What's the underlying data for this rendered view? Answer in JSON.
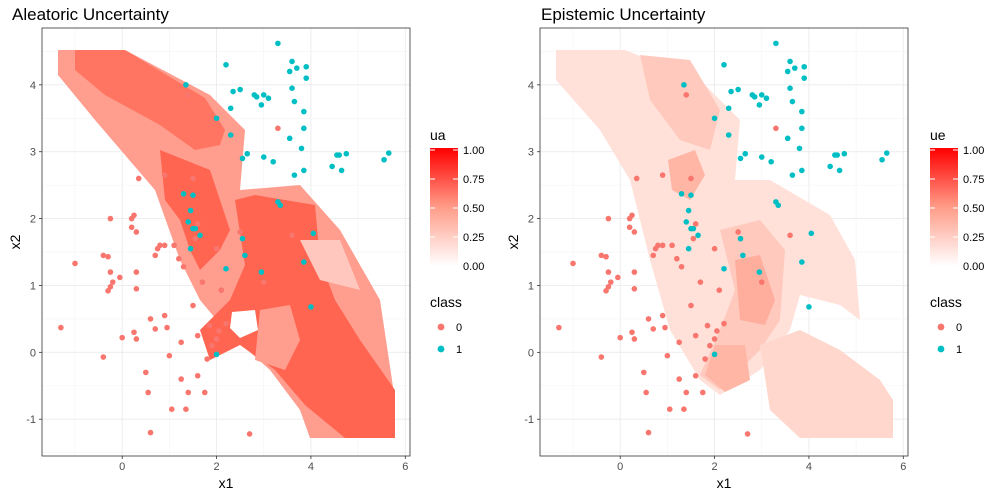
{
  "chart_data": [
    {
      "type": "scatter",
      "title": "Aleatoric Uncertainty",
      "xlabel": "x1",
      "ylabel": "x2",
      "xlim": [
        -1.7,
        6.1
      ],
      "ylim": [
        -1.55,
        4.85
      ],
      "x_ticks": [
        0,
        2,
        4,
        6
      ],
      "y_ticks": [
        -1,
        0,
        1,
        2,
        3,
        4
      ],
      "grid": true,
      "fill_scale": {
        "title": "ua",
        "low_color": "#ffffff",
        "high_color": "#ff0000",
        "breaks": [
          "0.00",
          "0.25",
          "0.50",
          "0.75",
          "1.00"
        ]
      },
      "fill_levels": {
        "high_core": 0.75,
        "mid_band": 0.55,
        "low_band": 0.25
      },
      "legend": {
        "title": "class",
        "labels": [
          "0",
          "1"
        ],
        "colors": [
          "#f8766d",
          "#00bfc4"
        ],
        "position": "right"
      }
    },
    {
      "type": "scatter",
      "title": "Epistemic Uncertainty",
      "xlabel": "x1",
      "ylabel": "x2",
      "xlim": [
        -1.7,
        6.1
      ],
      "ylim": [
        -1.55,
        4.85
      ],
      "x_ticks": [
        0,
        2,
        4,
        6
      ],
      "y_ticks": [
        -1,
        0,
        1,
        2,
        3,
        4
      ],
      "grid": true,
      "fill_scale": {
        "title": "ue",
        "low_color": "#ffffff",
        "high_color": "#ff0000",
        "breaks": [
          "0.00",
          "0.25",
          "0.50",
          "0.75",
          "1.00"
        ]
      },
      "fill_levels": {
        "high_core": 0.35,
        "mid_band": 0.22,
        "low_band": 0.12
      },
      "legend": {
        "title": "class",
        "labels": [
          "0",
          "1"
        ],
        "colors": [
          "#f8766d",
          "#00bfc4"
        ],
        "position": "right"
      }
    }
  ],
  "points": {
    "class0": [
      [
        -1.3,
        0.37
      ],
      [
        -1.0,
        1.33
      ],
      [
        -0.4,
        1.45
      ],
      [
        -0.4,
        -0.07
      ],
      [
        -0.25,
        1.2
      ],
      [
        -0.2,
        1.05
      ],
      [
        -0.05,
        1.12
      ],
      [
        0.0,
        0.22
      ],
      [
        -0.3,
        0.92
      ],
      [
        -0.25,
        0.98
      ],
      [
        -0.3,
        1.43
      ],
      [
        -0.25,
        2.0
      ],
      [
        0.2,
        2.0
      ],
      [
        0.25,
        2.05
      ],
      [
        0.2,
        1.87
      ],
      [
        0.3,
        1.2
      ],
      [
        0.3,
        0.95
      ],
      [
        0.3,
        1.8
      ],
      [
        0.35,
        2.6
      ],
      [
        0.25,
        0.3
      ],
      [
        0.3,
        0.2
      ],
      [
        0.5,
        -0.3
      ],
      [
        0.55,
        -0.6
      ],
      [
        0.6,
        0.5
      ],
      [
        0.6,
        -1.2
      ],
      [
        0.7,
        0.35
      ],
      [
        0.7,
        1.45
      ],
      [
        0.75,
        1.55
      ],
      [
        0.8,
        1.6
      ],
      [
        0.9,
        1.6
      ],
      [
        0.9,
        0.55
      ],
      [
        0.9,
        2.65
      ],
      [
        0.95,
        0.37
      ],
      [
        1.0,
        -0.05
      ],
      [
        1.05,
        -0.85
      ],
      [
        1.1,
        1.6
      ],
      [
        1.2,
        1.4
      ],
      [
        1.25,
        0.15
      ],
      [
        1.25,
        -0.4
      ],
      [
        1.35,
        -0.85
      ],
      [
        1.4,
        -0.6
      ],
      [
        1.5,
        2.6
      ],
      [
        1.5,
        0.7
      ],
      [
        1.6,
        0.25
      ],
      [
        1.6,
        -0.35
      ],
      [
        1.7,
        1.05
      ],
      [
        1.75,
        -0.6
      ],
      [
        1.8,
        -0.1
      ],
      [
        1.85,
        0.4
      ],
      [
        1.9,
        0.1
      ],
      [
        2.0,
        0.2
      ],
      [
        2.0,
        1.55
      ],
      [
        2.05,
        0.32
      ],
      [
        2.1,
        0.93
      ],
      [
        2.5,
        1.8
      ],
      [
        2.7,
        -1.22
      ],
      [
        3.0,
        1.05
      ],
      [
        3.3,
        3.35
      ],
      [
        3.6,
        1.75
      ],
      [
        1.4,
        3.85
      ],
      [
        2.2,
        0.43
      ],
      [
        1.55,
        1.7
      ],
      [
        1.6,
        1.92
      ],
      [
        1.3,
        1.28
      ]
    ],
    "class1": [
      [
        1.3,
        2.37
      ],
      [
        1.45,
        2.12
      ],
      [
        1.5,
        2.35
      ],
      [
        1.5,
        1.85
      ],
      [
        1.45,
        1.55
      ],
      [
        1.55,
        1.85
      ],
      [
        1.65,
        1.75
      ],
      [
        1.4,
        1.95
      ],
      [
        1.35,
        4.0
      ],
      [
        2.2,
        4.3
      ],
      [
        2.35,
        3.9
      ],
      [
        2.5,
        3.93
      ],
      [
        2.3,
        3.65
      ],
      [
        2.3,
        3.25
      ],
      [
        2.55,
        2.9
      ],
      [
        2.65,
        2.97
      ],
      [
        2.55,
        1.7
      ],
      [
        2.6,
        1.45
      ],
      [
        2.2,
        1.25
      ],
      [
        2.0,
        3.5
      ],
      [
        2.0,
        -0.03
      ],
      [
        2.8,
        3.85
      ],
      [
        2.85,
        3.82
      ],
      [
        2.95,
        3.7
      ],
      [
        3.0,
        2.92
      ],
      [
        3.1,
        3.8
      ],
      [
        3.3,
        4.62
      ],
      [
        3.2,
        2.85
      ],
      [
        3.3,
        2.25
      ],
      [
        3.35,
        2.2
      ],
      [
        3.55,
        4.2
      ],
      [
        3.55,
        3.2
      ],
      [
        3.6,
        3.95
      ],
      [
        3.6,
        4.35
      ],
      [
        3.65,
        3.75
      ],
      [
        3.7,
        4.25
      ],
      [
        3.85,
        3.6
      ],
      [
        3.85,
        3.35
      ],
      [
        3.8,
        3.05
      ],
      [
        3.85,
        2.72
      ],
      [
        3.65,
        2.65
      ],
      [
        3.85,
        1.35
      ],
      [
        3.9,
        4.27
      ],
      [
        3.9,
        4.1
      ],
      [
        4.05,
        1.78
      ],
      [
        4.0,
        0.68
      ],
      [
        4.45,
        2.78
      ],
      [
        4.55,
        2.95
      ],
      [
        4.6,
        2.95
      ],
      [
        4.65,
        2.72
      ],
      [
        4.75,
        2.97
      ],
      [
        5.55,
        2.88
      ],
      [
        5.65,
        2.98
      ],
      [
        3.0,
        3.85
      ],
      [
        2.95,
        1.2
      ]
    ]
  }
}
